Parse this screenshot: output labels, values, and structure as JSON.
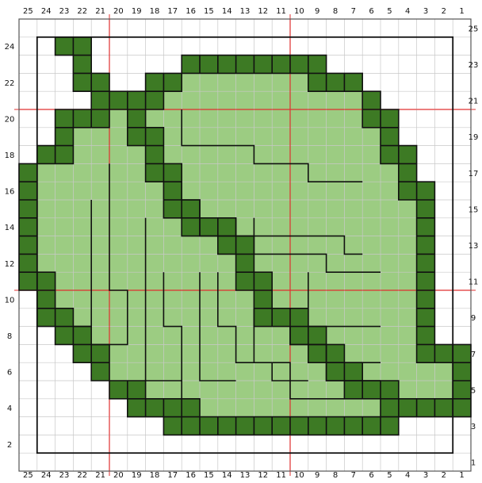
{
  "chart": {
    "columns": 25,
    "rows": 25,
    "top_col_labels": [
      "25",
      "24",
      "23",
      "22",
      "21",
      "20",
      "19",
      "18",
      "17",
      "16",
      "15",
      "14",
      "13",
      "12",
      "11",
      "10",
      "9",
      "8",
      "7",
      "6",
      "5",
      "4",
      "3",
      "2",
      "1"
    ],
    "bottom_col_labels": [
      "25",
      "24",
      "23",
      "22",
      "21",
      "20",
      "19",
      "18",
      "17",
      "16",
      "15",
      "14",
      "13",
      "12",
      "11",
      "10",
      "9",
      "8",
      "7",
      "6",
      "5",
      "4",
      "3",
      "2",
      "1"
    ],
    "left_row_labels": [
      "24",
      "22",
      "20",
      "18",
      "16",
      "14",
      "12",
      "10",
      "8",
      "6",
      "4",
      "2"
    ],
    "right_row_labels": [
      "25",
      "23",
      "21",
      "19",
      "17",
      "15",
      "13",
      "11",
      "9",
      "7",
      "5",
      "3",
      "1"
    ],
    "colors": {
      "dark": "#3d7a24",
      "light": "#9ccc82",
      "grid_minor": "#c8c8c8",
      "grid_major": "#e03030",
      "cell_border": "#111111",
      "background": "#ffffff"
    },
    "pattern_rows": [
      ".........................",
      "..DD.....................",
      "...D.....DDDDDDDD........",
      "...DD..DDLLLLLLLDDD......",
      "....DDDDLLLLLLLLLLLD.....",
      "..DDDLDLLLLLLLLLLLLDD....",
      "..DLLLDDLLLLLLLLLLLLD....",
      ".DDLLLLDLLLLLLLLLLLLDD...",
      "DLLLLLLDDLLLLLLLLLLLLD...",
      "DLLLLLLLDLLLLLLLLLLLLDD..",
      "DLLLLLLLDDLLLLLLLLLLLLD..",
      "DLLLLLLLLDDDLLLLLLLLLLD..",
      "DLLLLLLLLLLDDLLLLLLLLLD..",
      "DLLLLLLLLLLLDLLLLLLLLLD..",
      "DDLLLLLLLLLLDDLLLLLLLLD..",
      ".DLLLLLLLLLLLDLLLLLLLLD..",
      ".DDLLLLLLLLLLDDDLLLLLLD..",
      "..DDLLLLLLLLLLLDDLLLLLD..",
      "...DDLLLLLLLLLLLDDLLLLDDD",
      "....DLLLLLLLLLLLLDDLLLLLD",
      ".....DDLLLLLLLLLLLDDDLLLD",
      "......DDDDLLLLLLLLLLDDDDD",
      "........DDDDDDDDDDDDD....",
      ".........................",
      "........................."
    ]
  }
}
